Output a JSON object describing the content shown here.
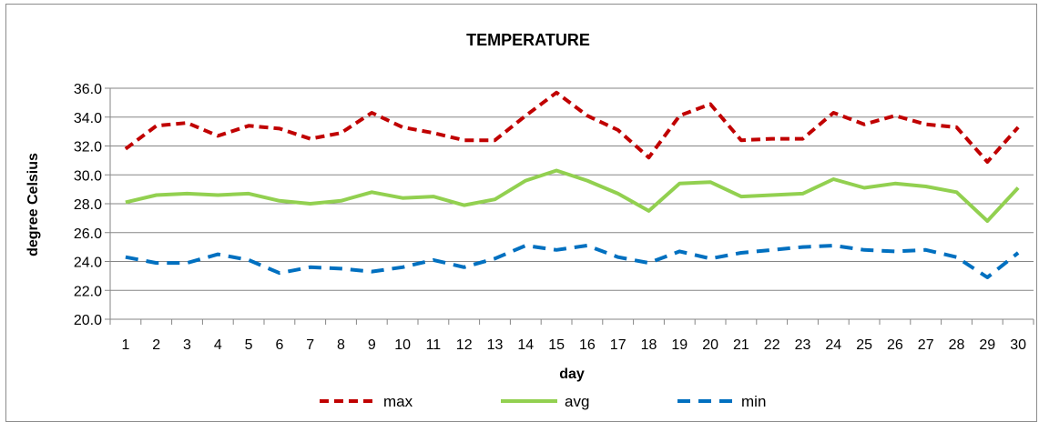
{
  "chart_data": {
    "type": "line",
    "title": "TEMPERATURE",
    "xlabel": "day",
    "ylabel": "degree Celsius",
    "ylim": [
      20.0,
      36.0
    ],
    "yticks": [
      "20.0",
      "22.0",
      "24.0",
      "26.0",
      "28.0",
      "30.0",
      "32.0",
      "34.0",
      "36.0"
    ],
    "x": [
      1,
      2,
      3,
      4,
      5,
      6,
      7,
      8,
      9,
      10,
      11,
      12,
      13,
      14,
      15,
      16,
      17,
      18,
      19,
      20,
      21,
      22,
      23,
      24,
      25,
      26,
      27,
      28,
      29,
      30
    ],
    "grid": "horizontal",
    "legend_position": "bottom",
    "series": [
      {
        "name": "max",
        "color": "#c00000",
        "style": "dashed",
        "values": [
          31.8,
          33.4,
          33.6,
          32.7,
          33.4,
          33.2,
          32.5,
          32.9,
          34.3,
          33.3,
          32.9,
          32.4,
          32.4,
          34.1,
          35.7,
          34.1,
          33.1,
          31.2,
          34.1,
          34.9,
          32.4,
          32.5,
          32.5,
          34.3,
          33.5,
          34.1,
          33.5,
          33.3,
          30.9,
          33.3
        ]
      },
      {
        "name": "avg",
        "color": "#92d050",
        "style": "solid",
        "values": [
          28.1,
          28.6,
          28.7,
          28.6,
          28.7,
          28.2,
          28.0,
          28.2,
          28.8,
          28.4,
          28.5,
          27.9,
          28.3,
          29.6,
          30.3,
          29.6,
          28.7,
          27.5,
          29.4,
          29.5,
          28.5,
          28.6,
          28.7,
          29.7,
          29.1,
          29.4,
          29.2,
          28.8,
          26.8,
          29.1
        ]
      },
      {
        "name": "min",
        "color": "#0070c0",
        "style": "dashed",
        "values": [
          24.3,
          23.9,
          23.9,
          24.5,
          24.1,
          23.2,
          23.6,
          23.5,
          23.3,
          23.6,
          24.1,
          23.6,
          24.2,
          25.1,
          24.8,
          25.1,
          24.3,
          23.9,
          24.7,
          24.2,
          24.6,
          24.8,
          25.0,
          25.1,
          24.8,
          24.7,
          24.8,
          24.3,
          22.9,
          24.6
        ]
      }
    ]
  }
}
